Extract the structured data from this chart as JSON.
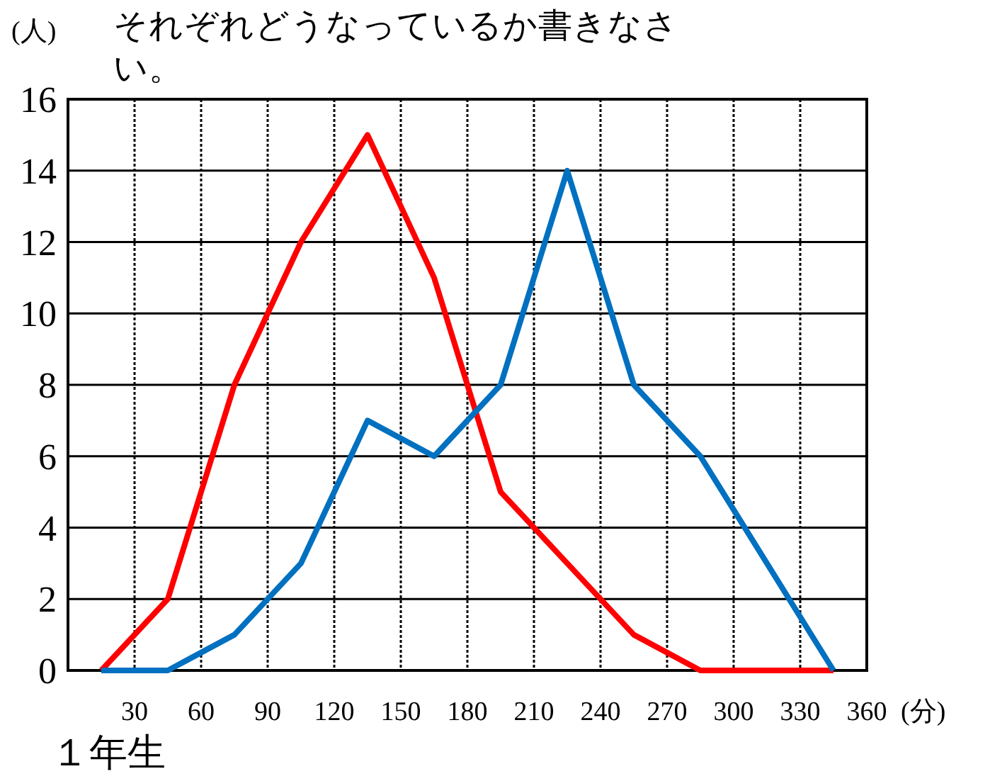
{
  "chart_data": {
    "type": "line",
    "title": "１年生",
    "xlabel": "(分)",
    "ylabel": "(人)",
    "annotations": [
      "それぞれどうなっているか書きなさい。"
    ],
    "xlim": [
      0,
      360
    ],
    "xticks": [
      30,
      60,
      90,
      120,
      150,
      180,
      210,
      240,
      270,
      300,
      330,
      360
    ],
    "ylim": [
      0,
      16
    ],
    "yticks": [
      0,
      2,
      4,
      6,
      8,
      10,
      12,
      14,
      16
    ],
    "grid": true,
    "series": [
      {
        "color": "#ff0000",
        "x": [
          15,
          45,
          75,
          105,
          135,
          165,
          195,
          225,
          255,
          285,
          345
        ],
        "values": [
          0,
          2,
          8,
          12,
          15,
          11,
          5,
          3,
          1,
          0,
          0
        ]
      },
      {
        "color": "#0070c0",
        "x": [
          15,
          45,
          75,
          105,
          135,
          165,
          195,
          225,
          255,
          285,
          345
        ],
        "values": [
          0,
          0,
          1,
          3,
          7,
          6,
          8,
          14,
          8,
          6,
          0
        ]
      }
    ]
  }
}
